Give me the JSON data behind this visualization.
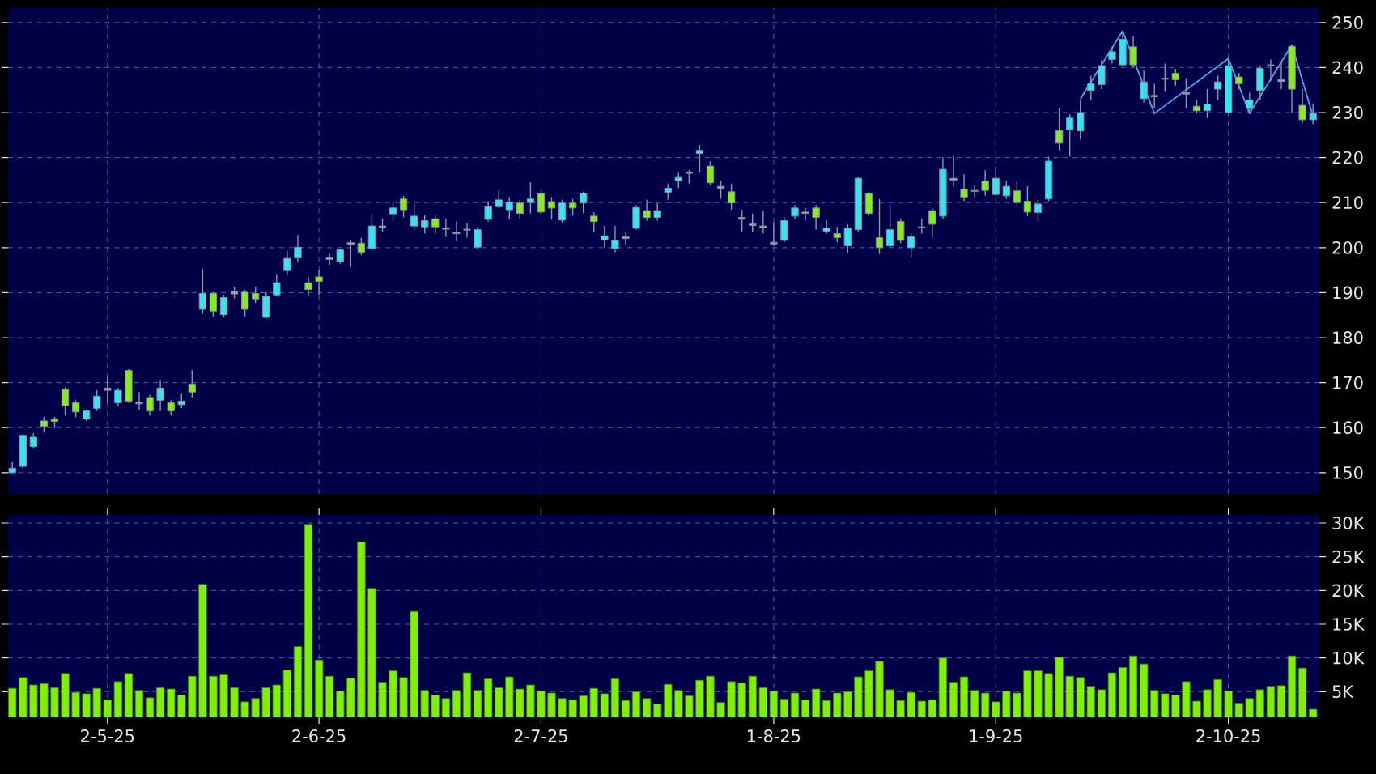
{
  "chart_data": [
    {
      "type": "candlestick",
      "grid": true,
      "ylim": [
        145.3,
        253.2
      ],
      "yticks": [
        150,
        160,
        170,
        180,
        190,
        200,
        210,
        220,
        230,
        240,
        250
      ],
      "categories": [
        null,
        null,
        null,
        null,
        null,
        null,
        null,
        null,
        null,
        null,
        null,
        null,
        null,
        null,
        null,
        null,
        null,
        null,
        null,
        null,
        null,
        null,
        null,
        null,
        null,
        null,
        null,
        null,
        null,
        null,
        null,
        null,
        null,
        null,
        null,
        null,
        null,
        null,
        null,
        null,
        null,
        null,
        null,
        null,
        null,
        null,
        null,
        null,
        null,
        null,
        null,
        null,
        null,
        null,
        null,
        null,
        null,
        null,
        null,
        null,
        null,
        null,
        null,
        null,
        null,
        null,
        null,
        null,
        null,
        null,
        null,
        null,
        null,
        null,
        null,
        null,
        null,
        null,
        null,
        null,
        null,
        null,
        null,
        null,
        null,
        null,
        null,
        null,
        null,
        null,
        null,
        null,
        null,
        null,
        null,
        null,
        null,
        null,
        null,
        null,
        null,
        null,
        null,
        null,
        null,
        null,
        null,
        null,
        null,
        null,
        null,
        null,
        null,
        null,
        null,
        null,
        null,
        null,
        null,
        null,
        null,
        null,
        null,
        null
      ],
      "ohlc": [
        [
          150,
          152.3,
          149.8,
          151
        ],
        [
          151.4,
          158.5,
          151,
          158.3
        ],
        [
          155.8,
          158.8,
          155.5,
          157.9
        ],
        [
          161.5,
          162.4,
          158.9,
          160.3
        ],
        [
          161.9,
          162.4,
          159.9,
          161.4
        ],
        [
          168.5,
          169,
          162.7,
          164.9
        ],
        [
          165.5,
          166.1,
          162.3,
          163.5
        ],
        [
          161.9,
          164,
          161.5,
          163.7
        ],
        [
          164.3,
          168.3,
          163.7,
          167
        ],
        [
          168.3,
          171.3,
          165.5,
          168.8
        ],
        [
          165.5,
          168.8,
          164.7,
          168.3
        ],
        [
          172.7,
          173,
          165.5,
          165.9
        ],
        [
          165.3,
          167.9,
          163.9,
          165.7
        ],
        [
          166.7,
          167.3,
          162.7,
          163.7
        ],
        [
          166.1,
          170.6,
          163.7,
          168.8
        ],
        [
          165.5,
          166.1,
          162.7,
          163.7
        ],
        [
          165.1,
          167.5,
          164.3,
          165.9
        ],
        [
          169.7,
          172.8,
          166.7,
          167.9
        ],
        [
          186.3,
          195.2,
          185.3,
          189.8
        ],
        [
          189.8,
          190.1,
          184.7,
          185.9
        ],
        [
          185.1,
          189.5,
          184.4,
          188.9
        ],
        [
          189.7,
          191.3,
          188.7,
          190.3
        ],
        [
          190.1,
          190.6,
          184.7,
          186.3
        ],
        [
          189.8,
          191.3,
          187.7,
          188.6
        ],
        [
          184.5,
          190.1,
          184.4,
          189.2
        ],
        [
          189.5,
          194,
          189.2,
          192.2
        ],
        [
          194.9,
          199.2,
          193.8,
          197.6
        ],
        [
          197.7,
          202.8,
          196.8,
          200.1
        ],
        [
          192.2,
          193.5,
          189.2,
          190.7
        ],
        [
          193.5,
          195,
          189.5,
          192.5
        ],
        [
          197.8,
          198.6,
          196.2,
          197.4
        ],
        [
          196.9,
          199.8,
          196.4,
          199.5
        ],
        [
          200.7,
          201.6,
          195.8,
          201.1
        ],
        [
          201,
          202.2,
          198.3,
          199
        ],
        [
          199.8,
          207.5,
          199.2,
          204.8
        ],
        [
          204.4,
          206.5,
          203.4,
          204.8
        ],
        [
          207.5,
          210.3,
          206,
          208.8
        ],
        [
          210.8,
          211.5,
          206.7,
          208.4
        ],
        [
          204.8,
          209.7,
          204,
          207
        ],
        [
          204.6,
          207.2,
          203.1,
          206
        ],
        [
          206.4,
          207.2,
          203.1,
          204.6
        ],
        [
          204.4,
          206.4,
          202.4,
          204.1
        ],
        [
          203.4,
          205.8,
          201.4,
          203.1
        ],
        [
          204.1,
          205.4,
          202.2,
          203.9
        ],
        [
          200.1,
          204.6,
          199.8,
          204
        ],
        [
          206.3,
          210.3,
          205.8,
          209.1
        ],
        [
          209.1,
          212.7,
          208.8,
          210.6
        ],
        [
          208.4,
          211.2,
          206.3,
          210.1
        ],
        [
          209.9,
          210.6,
          206.3,
          207.6
        ],
        [
          210,
          214.5,
          207.6,
          210.8
        ],
        [
          212,
          212.7,
          207.2,
          207.9
        ],
        [
          210.2,
          211.2,
          206.3,
          208.8
        ],
        [
          206.1,
          210.6,
          205.5,
          209.9
        ],
        [
          209.9,
          210.8,
          207.2,
          208.8
        ],
        [
          209.9,
          212.4,
          207.6,
          212.1
        ],
        [
          207,
          207.9,
          203.4,
          205.8
        ],
        [
          201.7,
          204.8,
          200,
          202.6
        ],
        [
          199.8,
          204.8,
          199,
          201.6
        ],
        [
          202.4,
          203.4,
          200.7,
          202
        ],
        [
          204.3,
          209.4,
          204,
          208.9
        ],
        [
          208.2,
          210.6,
          206,
          206.7
        ],
        [
          206.7,
          209.9,
          206,
          208.2
        ],
        [
          212.3,
          214.2,
          210.6,
          213.2
        ],
        [
          214.8,
          216.6,
          213.2,
          215.6
        ],
        [
          216.5,
          217.2,
          214.2,
          216.8
        ],
        [
          220.9,
          222.8,
          216.6,
          221.6
        ],
        [
          218.1,
          219.2,
          213.9,
          214.4
        ],
        [
          213.6,
          214.8,
          210.8,
          213.2
        ],
        [
          212.4,
          214.2,
          208.4,
          209.9
        ],
        [
          206.7,
          208.4,
          203.6,
          206.3
        ],
        [
          205.3,
          207.6,
          203.4,
          204.9
        ],
        [
          204.8,
          208.2,
          203.1,
          204.4
        ],
        [
          201.2,
          205.6,
          200.4,
          200.8
        ],
        [
          201.6,
          206.7,
          201.2,
          206
        ],
        [
          207,
          209.4,
          206.3,
          208.8
        ],
        [
          207.9,
          208.8,
          206,
          207.6
        ],
        [
          208.8,
          209.4,
          204,
          206.7
        ],
        [
          203.6,
          206,
          203.1,
          204.3
        ],
        [
          203.1,
          204.6,
          201.2,
          202.2
        ],
        [
          200.4,
          205.2,
          198.8,
          204.3
        ],
        [
          204,
          215.6,
          203.6,
          215.4
        ],
        [
          212,
          212.3,
          207.2,
          207.6
        ],
        [
          202.2,
          210.8,
          198.6,
          200
        ],
        [
          200.4,
          209.6,
          200,
          204
        ],
        [
          205.8,
          206.4,
          201,
          201.6
        ],
        [
          200,
          203.1,
          197.8,
          202.4
        ],
        [
          204.6,
          206.4,
          203.1,
          204.4
        ],
        [
          208.2,
          208.8,
          202.2,
          205.2
        ],
        [
          207,
          220,
          206.4,
          217.4
        ],
        [
          215.4,
          220.4,
          213.6,
          215
        ],
        [
          213,
          216.3,
          210.3,
          211.2
        ],
        [
          212.7,
          213.9,
          211.2,
          212.5
        ],
        [
          214.8,
          217.2,
          211.5,
          212.7
        ],
        [
          211.8,
          218,
          211.5,
          215.4
        ],
        [
          211.5,
          214.8,
          210.8,
          213.6
        ],
        [
          212.6,
          214.8,
          209.4,
          210
        ],
        [
          210.3,
          213.6,
          207,
          207.9
        ],
        [
          207.8,
          210.6,
          205.8,
          209.7
        ],
        [
          210.8,
          220.2,
          210.3,
          219.2
        ],
        [
          226,
          231,
          221.6,
          223.2
        ],
        [
          226.2,
          229.6,
          220.2,
          228.8
        ],
        [
          225.9,
          232.8,
          224,
          230
        ],
        [
          234.9,
          238.2,
          232.8,
          236.4
        ],
        [
          236.2,
          241.6,
          235.2,
          240.4
        ],
        [
          241.8,
          244.5,
          240.9,
          243.5
        ],
        [
          240.6,
          248.1,
          240.4,
          246.3
        ],
        [
          244.6,
          246.9,
          240,
          240.6
        ],
        [
          233.1,
          239.4,
          232.2,
          236.8
        ],
        [
          233.8,
          236.4,
          231,
          233.5
        ],
        [
          237.6,
          240.9,
          234.6,
          237.4
        ],
        [
          238.7,
          239.7,
          236,
          237.3
        ],
        [
          234.4,
          237.6,
          231,
          234.1
        ],
        [
          231.4,
          232.8,
          229.8,
          230.4
        ],
        [
          230.4,
          235.2,
          228.8,
          231.9
        ],
        [
          235.2,
          238.2,
          232.8,
          236.8
        ],
        [
          230,
          241.8,
          229.8,
          240.4
        ],
        [
          237.9,
          238.8,
          235.2,
          236.4
        ],
        [
          231,
          234.4,
          229.8,
          232.8
        ],
        [
          234.9,
          240.4,
          232.8,
          239.8
        ],
        [
          240.6,
          241.8,
          237,
          240.4
        ],
        [
          237.3,
          241.2,
          235.2,
          236.9
        ],
        [
          244.7,
          245,
          230,
          235.2
        ],
        [
          231.6,
          235.2,
          227.6,
          228.4
        ],
        [
          228.4,
          232,
          227.4,
          229.8
        ]
      ],
      "colors": [
        "#35e4f2",
        "#35e4f2",
        "#35e4f2",
        "#86ec1c",
        "#86ec1c",
        "#86ec1c",
        "#86ec1c",
        "#35e4f2",
        "#35e4f2",
        "#9aa0b4",
        "#35e4f2",
        "#86ec1c",
        "#9aa0b4",
        "#86ec1c",
        "#35e4f2",
        "#86ec1c",
        "#35e4f2",
        "#86ec1c",
        "#35e4f2",
        "#86ec1c",
        "#35e4f2",
        "#9aa0b4",
        "#86ec1c",
        "#86ec1c",
        "#35e4f2",
        "#35e4f2",
        "#35e4f2",
        "#35e4f2",
        "#86ec1c",
        "#86ec1c",
        "#9aa0b4",
        "#35e4f2",
        "#9aa0b4",
        "#86ec1c",
        "#35e4f2",
        "#9aa0b4",
        "#35e4f2",
        "#86ec1c",
        "#35e4f2",
        "#35e4f2",
        "#86ec1c",
        "#9aa0b4",
        "#9aa0b4",
        "#9aa0b4",
        "#35e4f2",
        "#35e4f2",
        "#35e4f2",
        "#35e4f2",
        "#86ec1c",
        "#35e4f2",
        "#86ec1c",
        "#86ec1c",
        "#35e4f2",
        "#86ec1c",
        "#35e4f2",
        "#86ec1c",
        "#35e4f2",
        "#35e4f2",
        "#9aa0b4",
        "#35e4f2",
        "#86ec1c",
        "#35e4f2",
        "#35e4f2",
        "#35e4f2",
        "#9aa0b4",
        "#35e4f2",
        "#86ec1c",
        "#9aa0b4",
        "#86ec1c",
        "#9aa0b4",
        "#9aa0b4",
        "#9aa0b4",
        "#9aa0b4",
        "#35e4f2",
        "#35e4f2",
        "#9aa0b4",
        "#86ec1c",
        "#35e4f2",
        "#86ec1c",
        "#35e4f2",
        "#35e4f2",
        "#86ec1c",
        "#86ec1c",
        "#35e4f2",
        "#86ec1c",
        "#35e4f2",
        "#9aa0b4",
        "#86ec1c",
        "#35e4f2",
        "#9aa0b4",
        "#86ec1c",
        "#9aa0b4",
        "#86ec1c",
        "#35e4f2",
        "#35e4f2",
        "#86ec1c",
        "#86ec1c",
        "#35e4f2",
        "#35e4f2",
        "#86ec1c",
        "#35e4f2",
        "#35e4f2",
        "#35e4f2",
        "#35e4f2",
        "#35e4f2",
        "#35e4f2",
        "#86ec1c",
        "#35e4f2",
        "#9aa0b4",
        "#9aa0b4",
        "#86ec1c",
        "#9aa0b4",
        "#86ec1c",
        "#35e4f2",
        "#35e4f2",
        "#35e4f2",
        "#86ec1c",
        "#35e4f2",
        "#35e4f2",
        "#9aa0b4",
        "#9aa0b4",
        "#86ec1c",
        "#86ec1c",
        "#35e4f2"
      ],
      "series": [
        {
          "type": "line",
          "color": "#4aa8f0",
          "values": [
            null,
            null,
            null,
            null,
            null,
            null,
            null,
            null,
            null,
            null,
            null,
            null,
            null,
            null,
            null,
            null,
            null,
            null,
            null,
            null,
            null,
            null,
            null,
            null,
            null,
            null,
            null,
            null,
            null,
            null,
            null,
            null,
            null,
            null,
            null,
            null,
            null,
            null,
            null,
            null,
            null,
            null,
            null,
            null,
            null,
            null,
            null,
            null,
            null,
            null,
            null,
            null,
            null,
            null,
            null,
            null,
            null,
            null,
            null,
            null,
            null,
            null,
            null,
            null,
            null,
            null,
            null,
            null,
            null,
            null,
            null,
            null,
            null,
            null,
            null,
            null,
            null,
            null,
            null,
            null,
            null,
            null,
            null,
            null,
            null,
            null,
            null,
            null,
            null,
            null,
            null,
            null,
            null,
            null,
            null,
            null,
            null,
            null,
            null,
            null,
            null,
            233,
            null,
            null,
            null,
            248.1,
            null,
            null,
            229.8,
            null,
            null,
            null,
            null,
            null,
            null,
            242,
            null,
            229.8,
            null,
            null,
            null,
            245,
            null,
            229.2
          ]
        }
      ]
    },
    {
      "type": "bar",
      "grid": true,
      "color": "#7ff000",
      "ylim": [
        1200,
        31200
      ],
      "yticks": [
        {
          "value": 5000,
          "label": "5K"
        },
        {
          "value": 10000,
          "label": "10K"
        },
        {
          "value": 15000,
          "label": "15K"
        },
        {
          "value": 20000,
          "label": "20K"
        },
        {
          "value": 25000,
          "label": "25K"
        },
        {
          "value": 30000,
          "label": "30K"
        }
      ],
      "categories": [
        null,
        null,
        null,
        null,
        null,
        null,
        null,
        null,
        null,
        "2-5-25",
        null,
        null,
        null,
        null,
        null,
        null,
        null,
        null,
        null,
        null,
        null,
        null,
        null,
        null,
        null,
        null,
        null,
        null,
        null,
        "2-6-25",
        null,
        null,
        null,
        null,
        null,
        null,
        null,
        null,
        null,
        null,
        null,
        null,
        null,
        null,
        null,
        null,
        null,
        null,
        null,
        null,
        "2-7-25",
        null,
        null,
        null,
        null,
        null,
        null,
        null,
        null,
        null,
        null,
        null,
        null,
        null,
        null,
        null,
        null,
        null,
        null,
        null,
        null,
        null,
        "1-8-25",
        null,
        null,
        null,
        null,
        null,
        null,
        null,
        null,
        null,
        null,
        null,
        null,
        null,
        null,
        null,
        null,
        null,
        null,
        null,
        null,
        "1-9-25",
        null,
        null,
        null,
        null,
        null,
        null,
        null,
        null,
        null,
        null,
        null,
        null,
        null,
        null,
        null,
        null,
        null,
        null,
        null,
        null,
        null,
        "2-10-25",
        null,
        null,
        null,
        null,
        null,
        null,
        null,
        null
      ],
      "values": [
        5500,
        7100,
        6000,
        6200,
        5600,
        7700,
        4900,
        4700,
        5500,
        3800,
        6500,
        7700,
        5200,
        4100,
        5600,
        5400,
        4500,
        7300,
        20900,
        7300,
        7500,
        5600,
        3500,
        4000,
        5600,
        6000,
        8200,
        11700,
        29800,
        9700,
        7300,
        5100,
        7000,
        27200,
        20300,
        6400,
        8100,
        7100,
        16900,
        5200,
        4500,
        4000,
        5200,
        7800,
        5200,
        6900,
        5600,
        7200,
        5400,
        6000,
        5100,
        4800,
        4000,
        3800,
        4400,
        5500,
        4700,
        6900,
        3700,
        5000,
        4000,
        3200,
        6100,
        5200,
        4400,
        6700,
        7300,
        3400,
        6500,
        6300,
        7300,
        5600,
        5100,
        3900,
        4800,
        3800,
        5400,
        3700,
        4800,
        5000,
        7200,
        8100,
        9500,
        5300,
        3700,
        4900,
        3600,
        3800,
        10000,
        6400,
        7200,
        5200,
        4800,
        3500,
        5100,
        4800,
        8100,
        8100,
        7700,
        10100,
        7300,
        7100,
        5800,
        5300,
        7800,
        8600,
        10300,
        9100,
        5200,
        4700,
        4500,
        6500,
        3600,
        5300,
        6800,
        5100,
        3300,
        4000,
        5300,
        5800,
        5900,
        10300,
        8500,
        2400
      ]
    }
  ]
}
